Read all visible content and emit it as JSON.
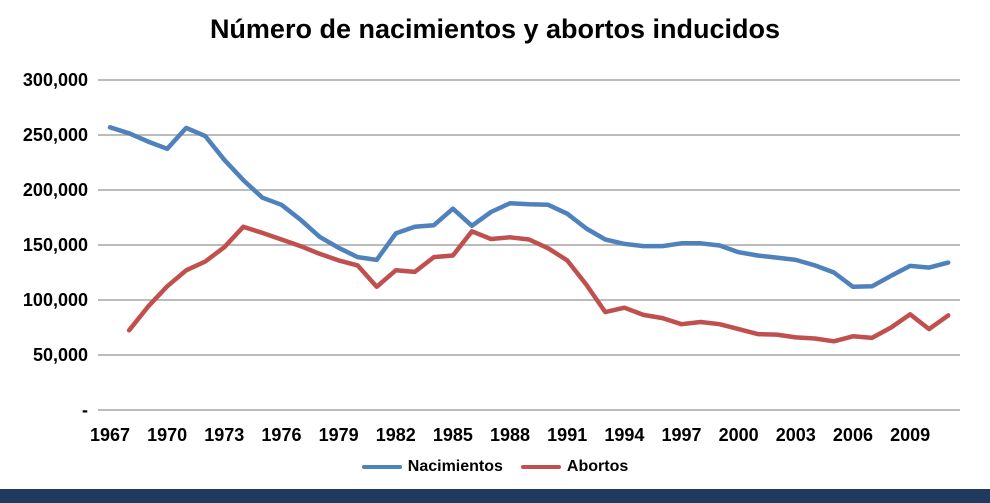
{
  "title": "Número de nacimientos y abortos inducidos",
  "chart_data": {
    "type": "line",
    "title": "Número de nacimientos y abortos inducidos",
    "x": [
      1967,
      1968,
      1969,
      1970,
      1971,
      1972,
      1973,
      1974,
      1975,
      1976,
      1977,
      1978,
      1979,
      1980,
      1981,
      1982,
      1983,
      1984,
      1985,
      1986,
      1987,
      1988,
      1989,
      1990,
      1991,
      1992,
      1993,
      1994,
      1995,
      1996,
      1997,
      1998,
      1999,
      2000,
      2001,
      2002,
      2003,
      2004,
      2005,
      2006,
      2007,
      2008,
      2009,
      2010,
      2011
    ],
    "series": [
      {
        "name": "Nacimientos",
        "color": "#4F81BD",
        "values": [
          257000,
          251500,
          244000,
          237500,
          256500,
          249000,
          227500,
          209000,
          193000,
          186500,
          173000,
          157500,
          147500,
          139000,
          136500,
          160500,
          166500,
          168000,
          183000,
          167500,
          180000,
          188000,
          187000,
          186500,
          178500,
          165000,
          155000,
          151000,
          149000,
          149000,
          151500,
          151500,
          149500,
          143500,
          140500,
          138500,
          136500,
          131500,
          125000,
          112000,
          112500,
          122000,
          131000,
          129500,
          134000
        ]
      },
      {
        "name": "Abortos",
        "color": "#C0504D",
        "values": [
          null,
          72500,
          94000,
          112500,
          127000,
          135000,
          148000,
          166500,
          161000,
          155000,
          149000,
          142000,
          136000,
          131500,
          112000,
          127000,
          125500,
          139000,
          140500,
          162500,
          155500,
          157000,
          155000,
          147000,
          136000,
          114000,
          89000,
          93000,
          86500,
          83500,
          78000,
          80000,
          78000,
          73500,
          69000,
          68500,
          66000,
          65000,
          62500,
          67000,
          65500,
          75000,
          87000,
          73500,
          86000
        ]
      }
    ],
    "ylim": [
      0,
      300000
    ],
    "ytick_interval": 50000,
    "ytick_labels": [
      "300,000",
      "250,000",
      "200,000",
      "150,000",
      "100,000",
      "50,000",
      "-"
    ],
    "xtick_labels": [
      "1967",
      "1970",
      "1973",
      "1976",
      "1979",
      "1982",
      "1985",
      "1988",
      "1991",
      "1994",
      "1997",
      "2000",
      "2003",
      "2006",
      "2009"
    ],
    "grid": "horizontal-only",
    "gridline_color": "#A6A6A6",
    "axis_label_color": "#000000",
    "legend_position": "bottom-center"
  },
  "legend": {
    "items": [
      {
        "label": "Nacimientos",
        "color": "#4F81BD"
      },
      {
        "label": "Abortos",
        "color": "#C0504D"
      }
    ]
  },
  "footer": {
    "bar_color": "#1F3A5E"
  }
}
